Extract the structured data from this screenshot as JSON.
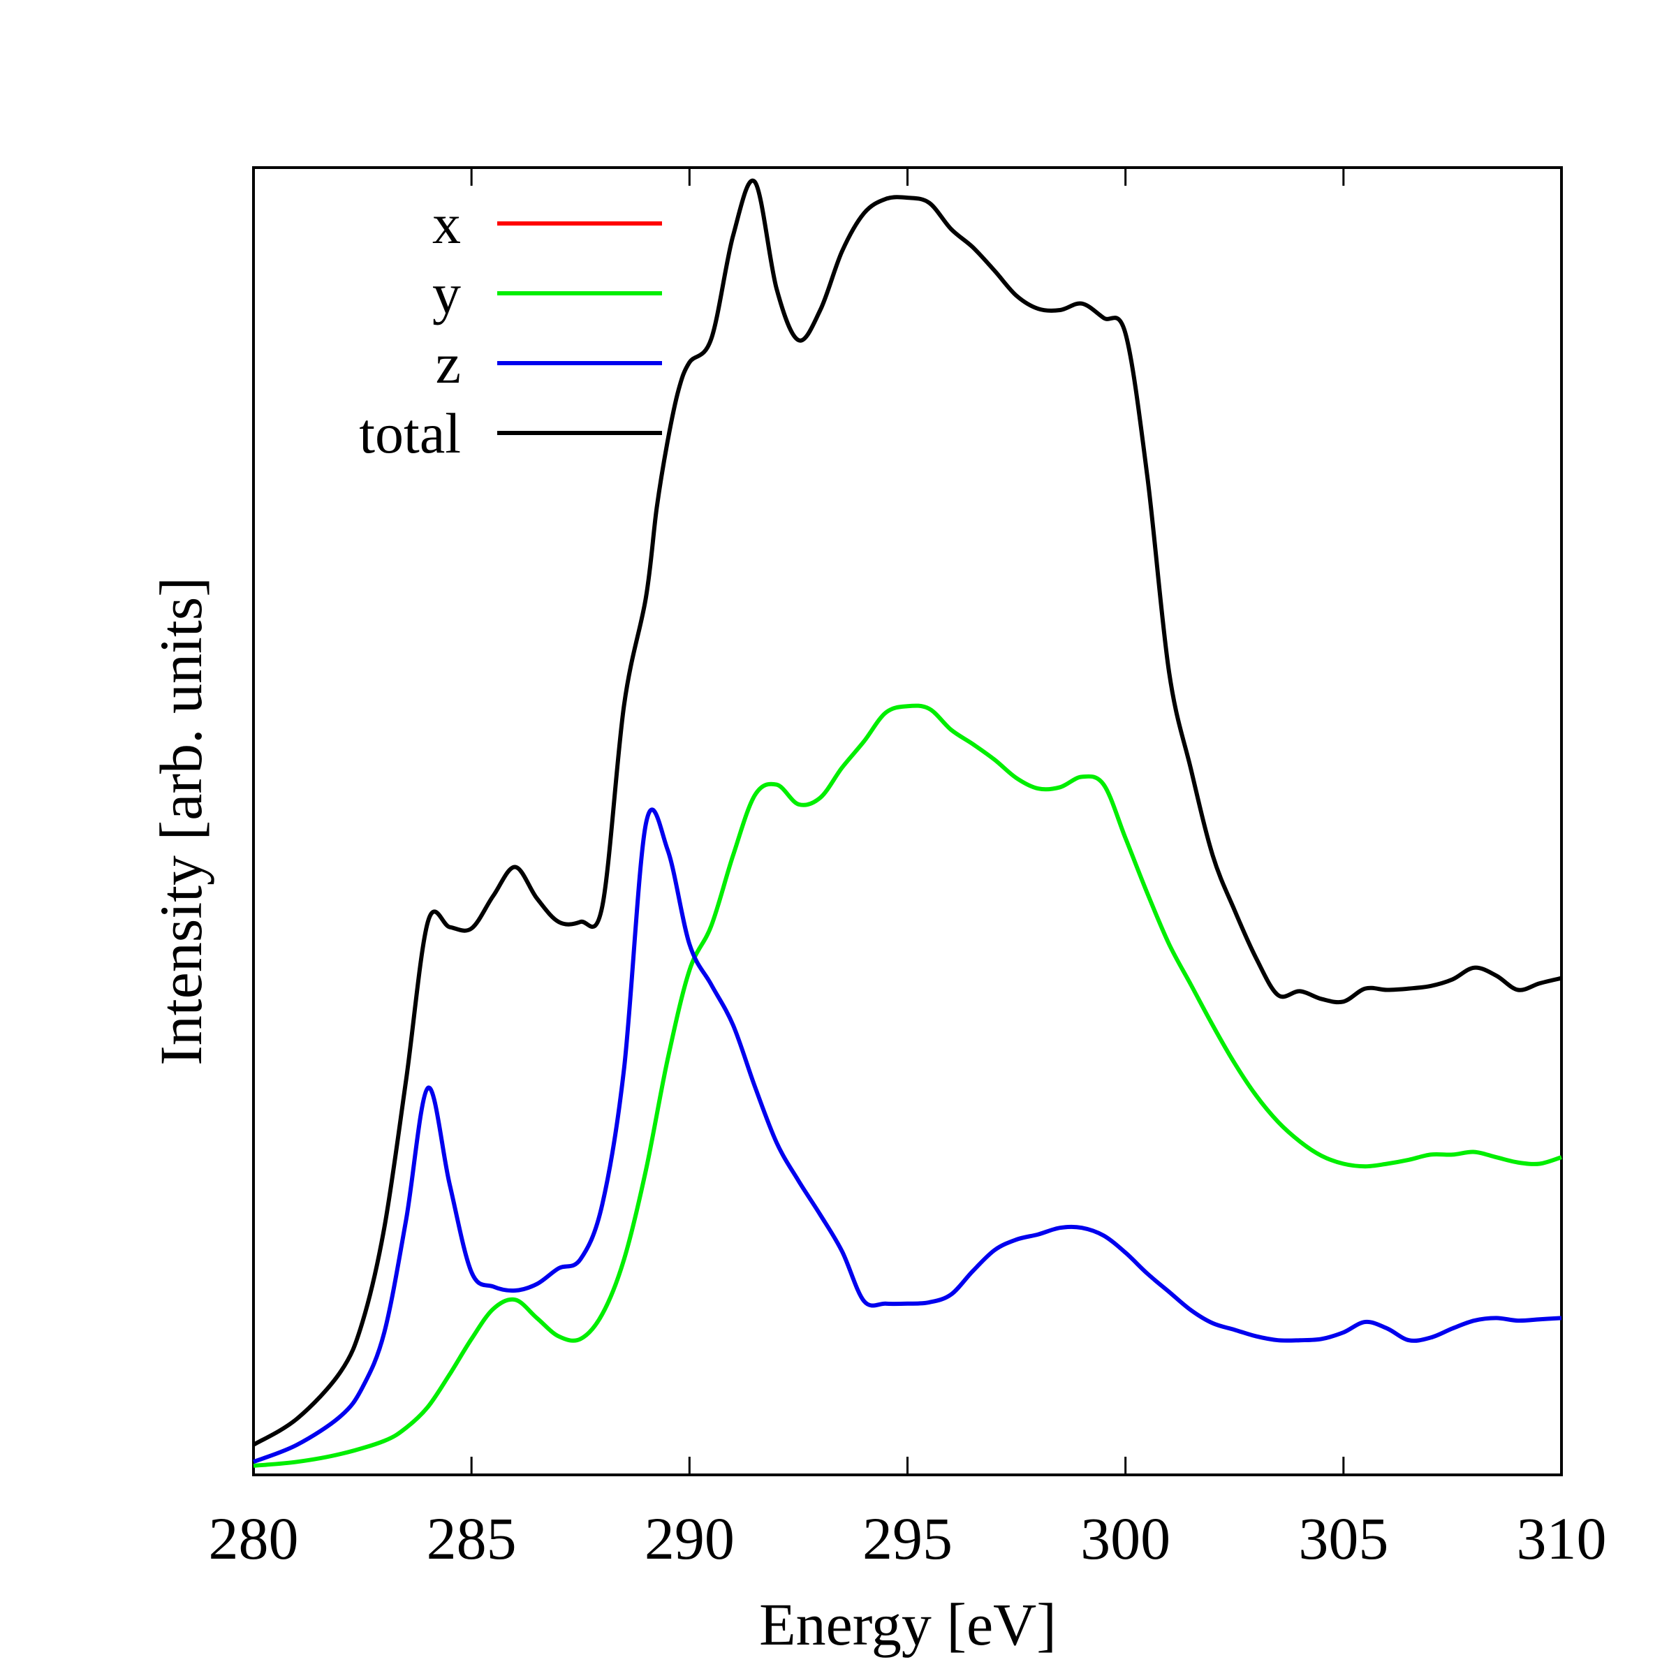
{
  "chart_data": {
    "type": "line",
    "title": "",
    "xlabel": "Energy [eV]",
    "ylabel": "Intensity [arb. units]",
    "xlim": [
      280,
      310
    ],
    "ylim": [
      0,
      100
    ],
    "xticks": [
      280,
      285,
      290,
      295,
      300,
      305,
      310
    ],
    "yticks_labeled": false,
    "grid": false,
    "legend_position": "top-left",
    "series": [
      {
        "name": "x",
        "color": "#ff0000",
        "x": [],
        "y": []
      },
      {
        "name": "y",
        "color": "#00ee00",
        "x": [
          280,
          281,
          282,
          283,
          283.5,
          284,
          284.5,
          285,
          285.5,
          286,
          286.5,
          287,
          287.5,
          288,
          288.5,
          289,
          289.5,
          290,
          290.5,
          291,
          291.5,
          292,
          292.5,
          293,
          293.5,
          294,
          294.5,
          295,
          295.5,
          296,
          296.5,
          297,
          297.5,
          298,
          298.5,
          299,
          299.5,
          300,
          300.5,
          301,
          301.5,
          302,
          302.5,
          303,
          303.5,
          304,
          304.5,
          305,
          305.5,
          306,
          306.5,
          307,
          307.5,
          308,
          308.5,
          309,
          309.5,
          310
        ],
        "y": [
          0.7,
          1.0,
          1.6,
          2.6,
          3.6,
          5.2,
          7.7,
          10.4,
          12.7,
          13.4,
          12.0,
          10.6,
          10.4,
          12.3,
          16.5,
          23.3,
          31.8,
          38.6,
          42.0,
          47.4,
          52.0,
          52.8,
          51.3,
          51.8,
          54.1,
          56.1,
          58.3,
          58.8,
          58.6,
          57.0,
          55.9,
          54.7,
          53.3,
          52.5,
          52.6,
          53.4,
          52.8,
          48.7,
          44.5,
          40.6,
          37.5,
          34.4,
          31.5,
          29.0,
          27.0,
          25.5,
          24.4,
          23.8,
          23.6,
          23.8,
          24.1,
          24.5,
          24.5,
          24.7,
          24.3,
          23.9,
          23.8,
          24.3
        ]
      },
      {
        "name": "z",
        "color": "#0000ee",
        "x": [
          280,
          281,
          282,
          282.5,
          283,
          283.5,
          284,
          284.5,
          285,
          285.5,
          286,
          286.5,
          287,
          287.5,
          288,
          288.5,
          289,
          289.5,
          290,
          290.5,
          291,
          291.5,
          292,
          292.5,
          293,
          293.5,
          294,
          294.5,
          295,
          295.5,
          296,
          296.5,
          297,
          297.5,
          298,
          298.5,
          299,
          299.5,
          300,
          300.5,
          301,
          301.5,
          302,
          302.5,
          303,
          303.5,
          304,
          304.5,
          305,
          305.5,
          306,
          306.5,
          307,
          307.5,
          308,
          308.5,
          309,
          309.5,
          310
        ],
        "y": [
          1.0,
          2.3,
          4.5,
          6.7,
          10.9,
          19.5,
          29.6,
          22.2,
          15.5,
          14.4,
          14.1,
          14.6,
          15.8,
          16.5,
          20.7,
          31.1,
          49.8,
          47.8,
          40.6,
          37.5,
          34.4,
          29.7,
          25.4,
          22.5,
          19.9,
          17.1,
          13.3,
          13.1,
          13.1,
          13.2,
          13.8,
          15.6,
          17.2,
          18.0,
          18.4,
          18.9,
          18.9,
          18.3,
          17.0,
          15.4,
          14.0,
          12.6,
          11.6,
          11.1,
          10.6,
          10.3,
          10.3,
          10.4,
          10.9,
          11.7,
          11.2,
          10.3,
          10.5,
          11.2,
          11.8,
          12.0,
          11.8,
          11.9,
          12.0
        ]
      },
      {
        "name": "total",
        "color": "#000000",
        "x": [
          280,
          281,
          282,
          282.5,
          283,
          283.5,
          284,
          284.5,
          285,
          285.5,
          286,
          286.5,
          287,
          287.5,
          288,
          288.5,
          289,
          289.25,
          289.5,
          289.75,
          290,
          290.5,
          291,
          291.5,
          292,
          292.5,
          293,
          293.5,
          294,
          294.5,
          295,
          295.5,
          296,
          296.5,
          297,
          297.5,
          298,
          298.5,
          299,
          299.5,
          300,
          300.5,
          301,
          301.5,
          302,
          302.5,
          303,
          303.5,
          304,
          304.5,
          305,
          305.5,
          306,
          306.5,
          307,
          307.5,
          308,
          308.5,
          309,
          309.5,
          310
        ],
        "y": [
          2.3,
          4.3,
          7.9,
          11.7,
          18.9,
          30.2,
          42.3,
          41.9,
          41.8,
          44.3,
          46.5,
          44.1,
          42.3,
          42.3,
          43.5,
          58.9,
          67.1,
          74.0,
          79.1,
          83.0,
          85.1,
          86.9,
          94.8,
          98.9,
          90.7,
          86.8,
          89.1,
          93.6,
          96.5,
          97.6,
          97.7,
          97.3,
          95.3,
          93.9,
          92.1,
          90.2,
          89.2,
          89.1,
          89.6,
          88.5,
          87.3,
          76.4,
          61.4,
          54.0,
          47.4,
          43.2,
          39.5,
          36.7,
          37.0,
          36.4,
          36.2,
          37.2,
          37.1,
          37.2,
          37.4,
          37.9,
          38.8,
          38.2,
          37.1,
          37.6,
          38.0
        ]
      }
    ]
  }
}
